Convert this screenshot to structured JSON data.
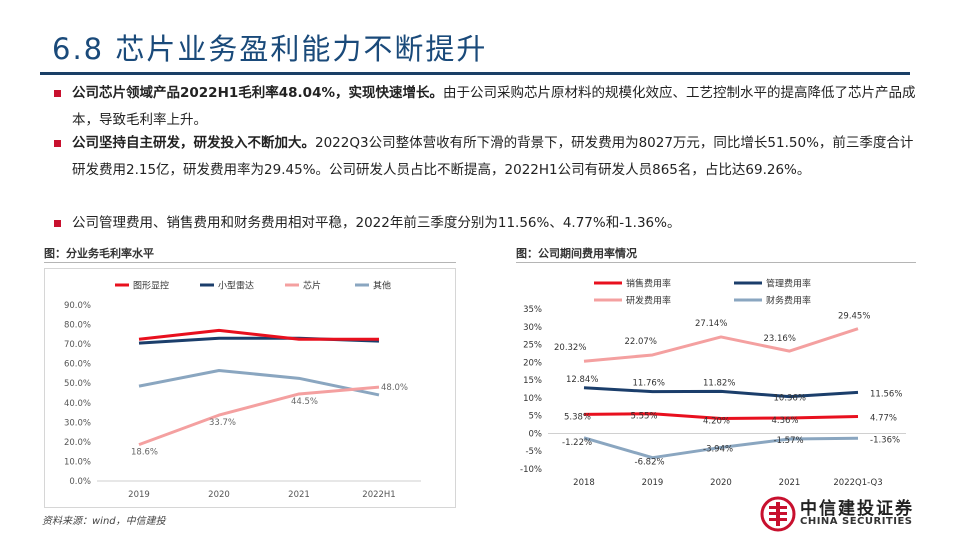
{
  "title": "6.8 芯片业务盈利能力不断提升",
  "bullets": [
    {
      "bold": "公司芯片领域产品2022H1毛利率48.04%，实现快速增长。",
      "rest": "由于公司采购芯片原材料的规模化效应、工艺控制水平的提高降低了芯片产品成本，导致毛利率上升。"
    },
    {
      "bold": "公司坚持自主研发，研发投入不断加大。",
      "rest": "2022Q3公司整体营收有所下滑的背景下，研发费用为8027万元，同比增长51.50%，前三季度合计研发费用2.15亿，研发费用率为29.45%。公司研发人员占比不断提高，2022H1公司有研发人员865名，占比达69.26%。"
    },
    {
      "bold": "",
      "rest": "公司管理费用、销售费用和财务费用相对平稳，2022年前三季度分别为11.56%、4.77%和-1.36%。"
    }
  ],
  "fig1_title": "图：分业务毛利率水平",
  "fig2_title": "图：公司期间费用率情况",
  "source": "资料来源：wind，中信建投",
  "logo": {
    "cn": "中信建投证券",
    "en": "CHINA SECURITIES"
  },
  "colors": {
    "red": "#e8101e",
    "navy": "#1b3e6b",
    "pink": "#f4a0a0",
    "gray": "#8aa6c0"
  },
  "chart_data": [
    {
      "type": "line",
      "title": "分业务毛利率水平",
      "categories": [
        "2019",
        "2020",
        "2021",
        "2022H1"
      ],
      "ylim": [
        0,
        90
      ],
      "y_ticks": [
        "0.0%",
        "10.0%",
        "20.0%",
        "30.0%",
        "40.0%",
        "50.0%",
        "60.0%",
        "70.0%",
        "80.0%",
        "90.0%"
      ],
      "legend": "top",
      "series": [
        {
          "name": "图形显控",
          "color": "#e8101e",
          "values": [
            72.5,
            77.0,
            72.5,
            72.5
          ],
          "labels": []
        },
        {
          "name": "小型雷达",
          "color": "#1b3e6b",
          "values": [
            70.5,
            73.0,
            73.0,
            71.5
          ],
          "labels": []
        },
        {
          "name": "芯片",
          "color": "#f4a0a0",
          "values": [
            18.6,
            33.7,
            44.5,
            48.0
          ],
          "labels": [
            "18.6%",
            "33.7%",
            "44.5%",
            "48.0%"
          ]
        },
        {
          "name": "其他",
          "color": "#8aa6c0",
          "values": [
            48.5,
            56.5,
            52.5,
            44.0
          ],
          "labels": []
        }
      ]
    },
    {
      "type": "line",
      "title": "公司期间费用率情况",
      "categories": [
        "2018",
        "2019",
        "2020",
        "2021",
        "2022Q1-Q3"
      ],
      "ylim": [
        -10,
        35
      ],
      "y_ticks": [
        "-10%",
        "-5%",
        "0%",
        "5%",
        "10%",
        "15%",
        "20%",
        "25%",
        "30%",
        "35%"
      ],
      "legend": "top",
      "series": [
        {
          "name": "销售费用率",
          "color": "#e8101e",
          "values": [
            5.38,
            5.55,
            4.2,
            4.36,
            4.77
          ],
          "labels": [
            "5.38%",
            "5.55%",
            "4.20%",
            "4.36%",
            "4.77%"
          ]
        },
        {
          "name": "管理费用率",
          "color": "#1b3e6b",
          "values": [
            12.84,
            11.76,
            11.82,
            10.36,
            11.56
          ],
          "labels": [
            "12.84%",
            "11.76%",
            "11.82%",
            "10.36%",
            "11.56%"
          ]
        },
        {
          "name": "研发费用率",
          "color": "#f4a0a0",
          "values": [
            20.32,
            22.07,
            27.14,
            23.16,
            29.45
          ],
          "labels": [
            "20.32%",
            "22.07%",
            "27.14%",
            "23.16%",
            "29.45%"
          ]
        },
        {
          "name": "财务费用率",
          "color": "#8aa6c0",
          "values": [
            -1.22,
            -6.82,
            -3.94,
            -1.57,
            -1.36
          ],
          "labels": [
            "-1.22%",
            "-6.82%",
            "-3.94%",
            "-1.57%",
            "-1.36%"
          ]
        }
      ]
    }
  ]
}
